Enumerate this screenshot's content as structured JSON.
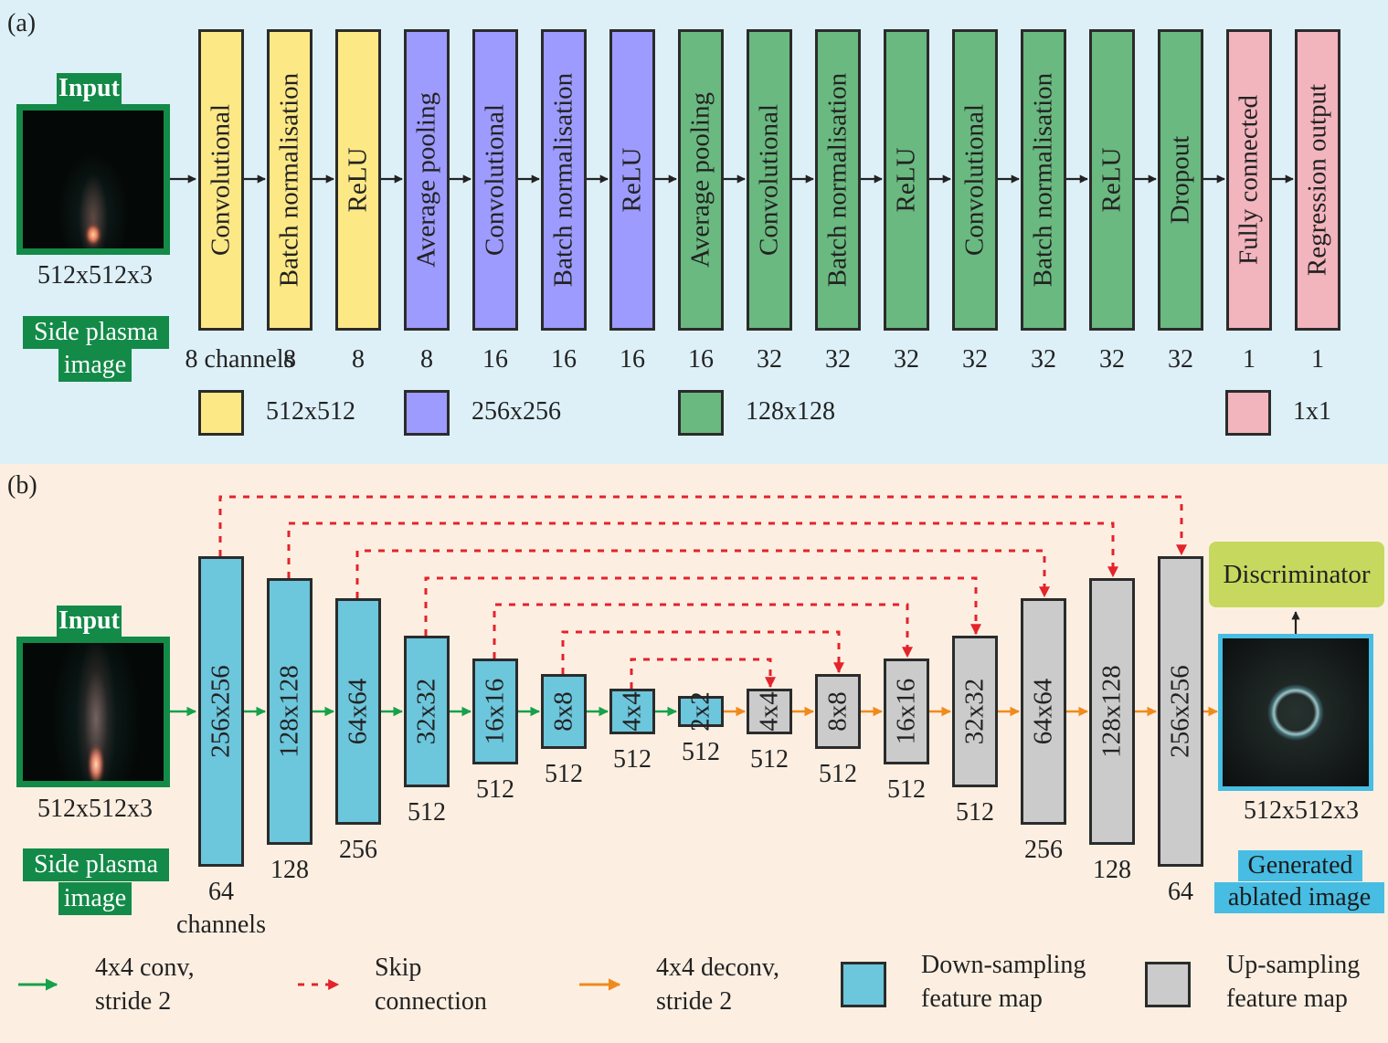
{
  "colors": {
    "panel_a_bg": "#ddf0f8",
    "panel_b_bg": "#fcefe2",
    "yellow": "#fde886",
    "purple": "#9d9bfd",
    "green": "#6ab980",
    "pink": "#f2b4bd",
    "downsample": "#6cc6dc",
    "upsample": "#cbcbcb",
    "input_green": "#138a48",
    "generated_blue": "#47bde3",
    "discriminator": "#c6d95e",
    "conv_arrow": "#17a14a",
    "skip_arrow": "#e4232a",
    "deconv_arrow": "#f08a1c"
  },
  "panel_a": {
    "label": "(a)",
    "input": {
      "title": "Input",
      "size": "512x512x3",
      "caption_line1": "Side plasma",
      "caption_line2": "image"
    },
    "first_channel_label": "8 channels",
    "layers": [
      {
        "name": "Convolutional",
        "group": "yellow",
        "channels": "8 channels"
      },
      {
        "name": "Batch normalisation",
        "group": "yellow",
        "channels": "8"
      },
      {
        "name": "ReLU",
        "group": "yellow",
        "channels": "8"
      },
      {
        "name": "Average pooling",
        "group": "purple",
        "channels": "8"
      },
      {
        "name": "Convolutional",
        "group": "purple",
        "channels": "16"
      },
      {
        "name": "Batch normalisation",
        "group": "purple",
        "channels": "16"
      },
      {
        "name": "ReLU",
        "group": "purple",
        "channels": "16"
      },
      {
        "name": "Average pooling",
        "group": "green",
        "channels": "16"
      },
      {
        "name": "Convolutional",
        "group": "green",
        "channels": "32"
      },
      {
        "name": "Batch normalisation",
        "group": "green",
        "channels": "32"
      },
      {
        "name": "ReLU",
        "group": "green",
        "channels": "32"
      },
      {
        "name": "Convolutional",
        "group": "green",
        "channels": "32"
      },
      {
        "name": "Batch normalisation",
        "group": "green",
        "channels": "32"
      },
      {
        "name": "ReLU",
        "group": "green",
        "channels": "32"
      },
      {
        "name": "Dropout",
        "group": "green",
        "channels": "32"
      },
      {
        "name": "Fully connected",
        "group": "pink",
        "channels": "1"
      },
      {
        "name": "Regression output",
        "group": "pink",
        "channels": "1"
      }
    ],
    "legend": [
      {
        "group": "yellow",
        "label": "512x512"
      },
      {
        "group": "purple",
        "label": "256x256"
      },
      {
        "group": "green",
        "label": "128x128"
      },
      {
        "group": "pink",
        "label": "1x1"
      }
    ]
  },
  "panel_b": {
    "label": "(b)",
    "input": {
      "title": "Input",
      "size": "512x512x3",
      "caption_line1": "Side plasma",
      "caption_line2": "image"
    },
    "down_layers": [
      {
        "size": "256x256",
        "channels": "64"
      },
      {
        "size": "128x128",
        "channels": "128"
      },
      {
        "size": "64x64",
        "channels": "256"
      },
      {
        "size": "32x32",
        "channels": "512"
      },
      {
        "size": "16x16",
        "channels": "512"
      },
      {
        "size": "8x8",
        "channels": "512"
      },
      {
        "size": "4x4",
        "channels": "512"
      },
      {
        "size": "2x2",
        "channels": "512"
      }
    ],
    "channels_word": "channels",
    "up_layers": [
      {
        "size": "4x4",
        "channels": "512"
      },
      {
        "size": "8x8",
        "channels": "512"
      },
      {
        "size": "16x16",
        "channels": "512"
      },
      {
        "size": "32x32",
        "channels": "512"
      },
      {
        "size": "64x64",
        "channels": "256"
      },
      {
        "size": "128x128",
        "channels": "128"
      },
      {
        "size": "256x256",
        "channels": "64"
      }
    ],
    "output": {
      "size": "512x512x3",
      "caption_line1": "Generated",
      "caption_line2": "ablated image"
    },
    "discriminator": "Discriminator",
    "legend": {
      "conv": {
        "line1": "4x4 conv,",
        "line2": "stride 2"
      },
      "skip": {
        "line1": "Skip",
        "line2": "connection"
      },
      "deconv": {
        "line1": "4x4 deconv,",
        "line2": "stride 2"
      },
      "down": {
        "line1": "Down-sampling",
        "line2": "feature map"
      },
      "up": {
        "line1": "Up-sampling",
        "line2": "feature map"
      }
    }
  }
}
